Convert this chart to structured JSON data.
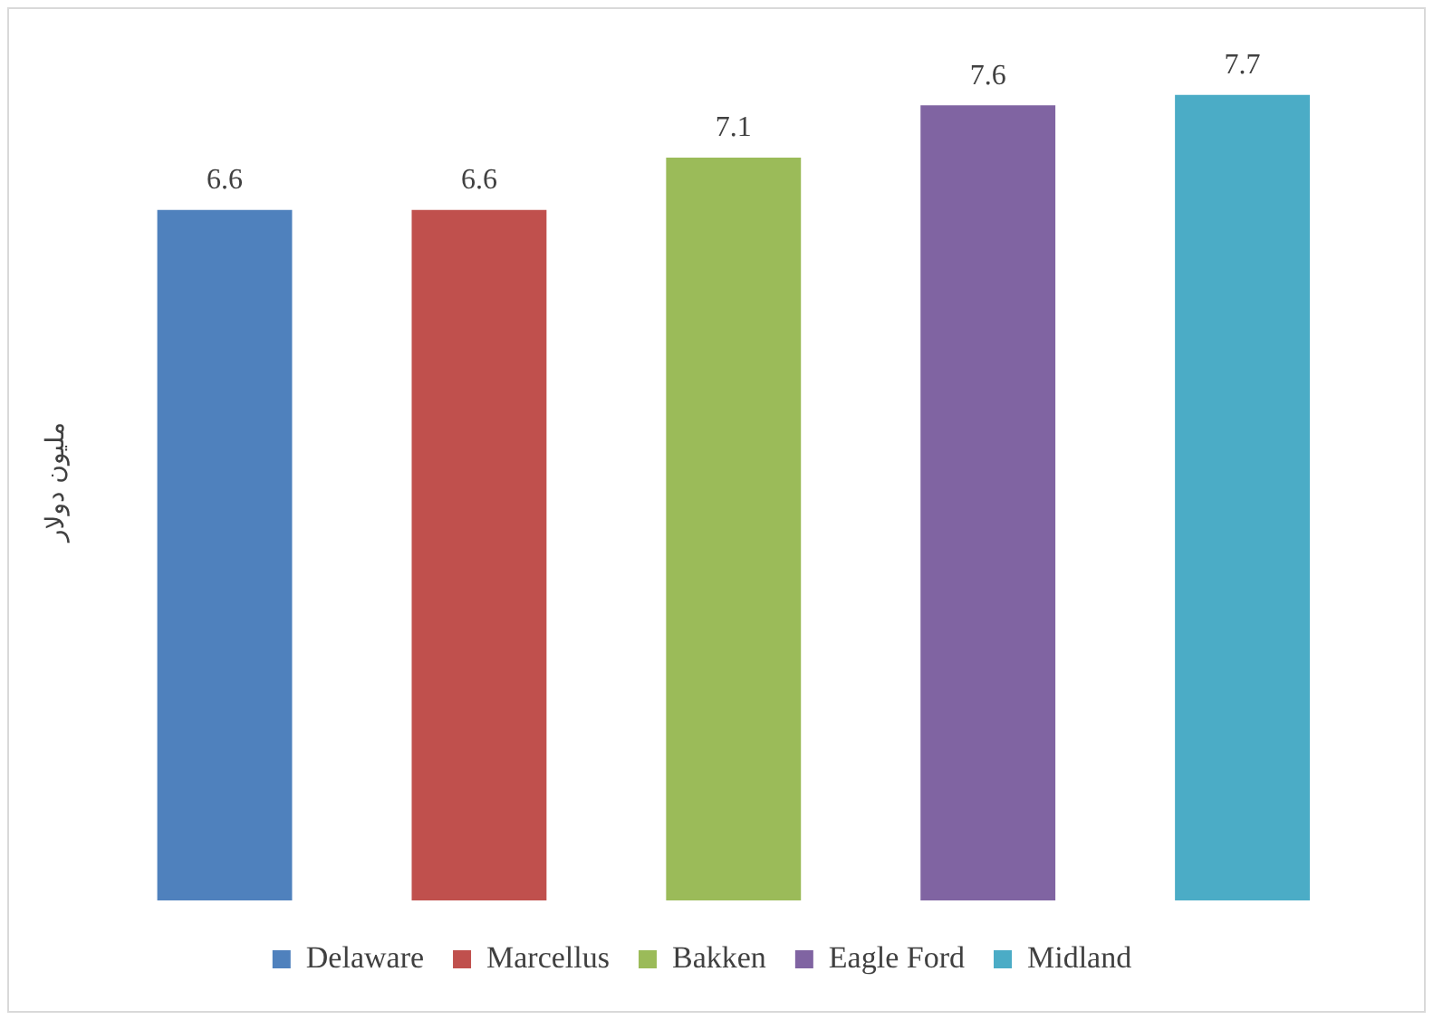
{
  "chart_data": {
    "type": "bar",
    "ylabel": "مليون دولار",
    "categories": [
      null,
      null,
      null,
      null,
      null
    ],
    "stacked": true,
    "series": [
      {
        "name": "Delaware",
        "color": "#4f81bd",
        "values": [
          6.6,
          null,
          null,
          null,
          null
        ]
      },
      {
        "name": "Marcellus",
        "color": "#c0504d",
        "values": [
          null,
          6.6,
          null,
          null,
          null
        ]
      },
      {
        "name": "Bakken",
        "color": "#9bbb59",
        "values": [
          null,
          null,
          7.1,
          null,
          null
        ]
      },
      {
        "name": "Eagle Ford",
        "color": "#8064a2",
        "values": [
          null,
          null,
          null,
          7.6,
          null
        ]
      },
      {
        "name": "Midland",
        "color": "#4bacc6",
        "values": [
          null,
          null,
          null,
          null,
          7.7
        ]
      }
    ],
    "data_labels": true,
    "legend": "bottom",
    "grid": false,
    "tick_labels": false
  }
}
